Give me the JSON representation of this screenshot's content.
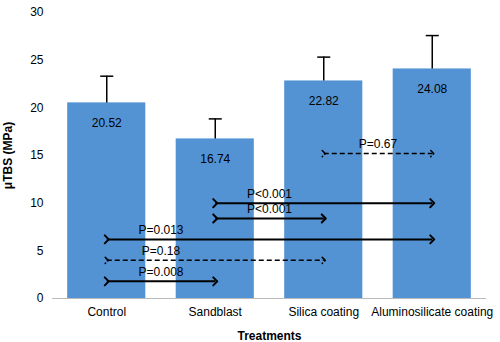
{
  "chart_data": {
    "type": "bar",
    "x_label": "Treatments",
    "y_label": "μTBS (MPa)",
    "categories": [
      "Control",
      "Sandblast",
      "Silica coating",
      "Aluminosilicate coating"
    ],
    "values": [
      20.52,
      16.74,
      22.82,
      24.08
    ],
    "errors": [
      2.8,
      2.1,
      2.5,
      3.5
    ],
    "color": "#5393d3",
    "ylim": [
      0,
      30
    ],
    "yticks": [
      0,
      5,
      10,
      15,
      20,
      25,
      30
    ],
    "grid": false,
    "data_labels": true,
    "annotations": [
      {
        "text": "P=0.67",
        "from": "Silica coating",
        "to": "Aluminosilicate coating",
        "y": 15.2,
        "line_style": "dashed"
      },
      {
        "text": "P<0.001",
        "from": "Sandblast",
        "to": "Aluminosilicate coating",
        "y": 10.0,
        "line_style": "solid"
      },
      {
        "text": "P<0.001",
        "from": "Sandblast",
        "to": "Silica coating",
        "y": 8.4,
        "line_style": "solid"
      },
      {
        "text": "P=0.013",
        "from": "Control",
        "to": "Aluminosilicate coating",
        "y": 6.2,
        "line_style": "solid"
      },
      {
        "text": "P=0.18",
        "from": "Control",
        "to": "Silica coating",
        "y": 4.0,
        "line_style": "dashed"
      },
      {
        "text": "P=0.008",
        "from": "Control",
        "to": "Sandblast",
        "y": 1.8,
        "line_style": "solid"
      }
    ]
  }
}
